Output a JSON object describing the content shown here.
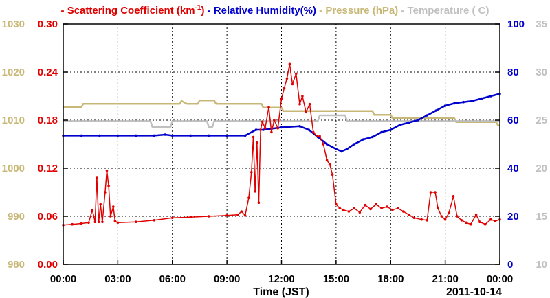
{
  "chart_data": {
    "type": "line",
    "legend_position": "top",
    "grid": true,
    "x_label": "Time (JST)",
    "date_label": "2011-10-14",
    "x_ticks": [
      "00:00",
      "03:00",
      "06:00",
      "09:00",
      "12:00",
      "15:00",
      "18:00",
      "21:00",
      "00:00"
    ],
    "x_range_hours": [
      0,
      24
    ],
    "axes": {
      "scattering": {
        "ticks": [
          "0.00",
          "0.06",
          "0.12",
          "0.18",
          "0.24",
          "0.30"
        ],
        "range": [
          0,
          0.3
        ]
      },
      "pressure": {
        "ticks": [
          "980",
          "990",
          "1000",
          "1010",
          "1020",
          "1030"
        ],
        "range": [
          980,
          1030
        ]
      },
      "humidity": {
        "ticks": [
          "0",
          "20",
          "40",
          "60",
          "80",
          "100"
        ],
        "range": [
          0,
          100
        ]
      },
      "temperature": {
        "ticks": [
          "10",
          "15",
          "20",
          "25",
          "30",
          "35"
        ],
        "range": [
          10,
          35
        ]
      }
    },
    "series": [
      {
        "name": "Scattering Coefficient (km",
        "name_sup": "-1",
        "name_suffix": ")",
        "color": "#e00000",
        "axis": "scattering",
        "markers": true,
        "points": [
          [
            0,
            0.049
          ],
          [
            0.5,
            0.05
          ],
          [
            1,
            0.051
          ],
          [
            1.4,
            0.052
          ],
          [
            1.6,
            0.068
          ],
          [
            1.75,
            0.053
          ],
          [
            1.85,
            0.108
          ],
          [
            1.95,
            0.053
          ],
          [
            2.05,
            0.075
          ],
          [
            2.15,
            0.053
          ],
          [
            2.3,
            0.09
          ],
          [
            2.4,
            0.117
          ],
          [
            2.5,
            0.098
          ],
          [
            2.6,
            0.06
          ],
          [
            2.75,
            0.072
          ],
          [
            2.85,
            0.054
          ],
          [
            3,
            0.052
          ],
          [
            4,
            0.053
          ],
          [
            5,
            0.055
          ],
          [
            6,
            0.058
          ],
          [
            7,
            0.059
          ],
          [
            8,
            0.06
          ],
          [
            9,
            0.061
          ],
          [
            9.6,
            0.062
          ],
          [
            9.8,
            0.066
          ],
          [
            10,
            0.061
          ],
          [
            10.2,
            0.083
          ],
          [
            10.35,
            0.115
          ],
          [
            10.45,
            0.159
          ],
          [
            10.55,
            0.091
          ],
          [
            10.65,
            0.152
          ],
          [
            10.75,
            0.077
          ],
          [
            10.85,
            0.168
          ],
          [
            10.95,
            0.178
          ],
          [
            11.1,
            0.17
          ],
          [
            11.3,
            0.196
          ],
          [
            11.45,
            0.165
          ],
          [
            11.6,
            0.18
          ],
          [
            11.8,
            0.17
          ],
          [
            12,
            0.207
          ],
          [
            12.15,
            0.22
          ],
          [
            12.3,
            0.232
          ],
          [
            12.45,
            0.25
          ],
          [
            12.6,
            0.225
          ],
          [
            12.8,
            0.238
          ],
          [
            13,
            0.2
          ],
          [
            13.15,
            0.21
          ],
          [
            13.35,
            0.19
          ],
          [
            13.55,
            0.2
          ],
          [
            13.75,
            0.165
          ],
          [
            13.95,
            0.16
          ],
          [
            14.1,
            0.16
          ],
          [
            14.3,
            0.15
          ],
          [
            14.5,
            0.13
          ],
          [
            14.65,
            0.125
          ],
          [
            14.8,
            0.112
          ],
          [
            15,
            0.075
          ],
          [
            15.2,
            0.07
          ],
          [
            15.4,
            0.068
          ],
          [
            15.7,
            0.066
          ],
          [
            16,
            0.07
          ],
          [
            16.3,
            0.065
          ],
          [
            16.6,
            0.074
          ],
          [
            16.9,
            0.069
          ],
          [
            17.2,
            0.075
          ],
          [
            17.5,
            0.07
          ],
          [
            17.8,
            0.072
          ],
          [
            18.1,
            0.068
          ],
          [
            18.4,
            0.07
          ],
          [
            18.7,
            0.066
          ],
          [
            19,
            0.062
          ],
          [
            19.3,
            0.058
          ],
          [
            19.7,
            0.056
          ],
          [
            20,
            0.055
          ],
          [
            20.2,
            0.09
          ],
          [
            20.45,
            0.09
          ],
          [
            20.6,
            0.07
          ],
          [
            20.8,
            0.06
          ],
          [
            21,
            0.056
          ],
          [
            21.2,
            0.064
          ],
          [
            21.45,
            0.085
          ],
          [
            21.65,
            0.06
          ],
          [
            21.9,
            0.055
          ],
          [
            22.15,
            0.052
          ],
          [
            22.4,
            0.05
          ],
          [
            22.7,
            0.062
          ],
          [
            22.9,
            0.053
          ],
          [
            23.2,
            0.05
          ],
          [
            23.5,
            0.056
          ],
          [
            23.75,
            0.054
          ],
          [
            24,
            0.056
          ]
        ]
      },
      {
        "name": "Relative Humidity(%)",
        "color": "#0000cc",
        "axis": "humidity",
        "markers": true,
        "points": [
          [
            0,
            53.6
          ],
          [
            1,
            53.6
          ],
          [
            2,
            53.6
          ],
          [
            3,
            53.6
          ],
          [
            4,
            53.6
          ],
          [
            5,
            53.6
          ],
          [
            5.6,
            54
          ],
          [
            6,
            53.6
          ],
          [
            7,
            53.6
          ],
          [
            8,
            53.6
          ],
          [
            9,
            53.6
          ],
          [
            10,
            53.6
          ],
          [
            10.6,
            56
          ],
          [
            11,
            56
          ],
          [
            12,
            57
          ],
          [
            13,
            57.5
          ],
          [
            13.5,
            56
          ],
          [
            14,
            53
          ],
          [
            14.5,
            50
          ],
          [
            15,
            48
          ],
          [
            15.3,
            47
          ],
          [
            15.6,
            48
          ],
          [
            16,
            50
          ],
          [
            16.5,
            52
          ],
          [
            17,
            53
          ],
          [
            17.5,
            55
          ],
          [
            18,
            56
          ],
          [
            18.5,
            58
          ],
          [
            19,
            59
          ],
          [
            19.5,
            60
          ],
          [
            20,
            62
          ],
          [
            20.5,
            64
          ],
          [
            21,
            66
          ],
          [
            21.5,
            67
          ],
          [
            22,
            67.5
          ],
          [
            22.5,
            68
          ],
          [
            23,
            69
          ],
          [
            23.5,
            70
          ],
          [
            24,
            71
          ]
        ]
      },
      {
        "name": "Pressure (hPa)",
        "color": "#c8b878",
        "axis": "pressure",
        "markers": false,
        "points": [
          [
            0,
            1012.7
          ],
          [
            1,
            1012.7
          ],
          [
            1.1,
            1013.4
          ],
          [
            6.4,
            1013.4
          ],
          [
            6.5,
            1014
          ],
          [
            6.8,
            1013.4
          ],
          [
            7.4,
            1013.4
          ],
          [
            7.5,
            1014.1
          ],
          [
            8.3,
            1014.1
          ],
          [
            8.4,
            1013.4
          ],
          [
            10.9,
            1013.4
          ],
          [
            11,
            1012.6
          ],
          [
            12,
            1012.6
          ],
          [
            12.1,
            1011.9
          ],
          [
            17,
            1011.9
          ],
          [
            17.1,
            1011.1
          ],
          [
            18,
            1011.1
          ],
          [
            18.1,
            1010.4
          ],
          [
            21.5,
            1010.4
          ],
          [
            21.6,
            1009.6
          ],
          [
            23.8,
            1009.6
          ],
          [
            23.9,
            1008.9
          ],
          [
            24,
            1008.9
          ]
        ]
      },
      {
        "name": "Temperature (",
        "name_suffix": "C)",
        "color": "#c0c0c0",
        "axis": "temperature",
        "markers": false,
        "points": [
          [
            0,
            24.9
          ],
          [
            4.8,
            24.9
          ],
          [
            4.9,
            24.3
          ],
          [
            5.9,
            24.3
          ],
          [
            6,
            24.9
          ],
          [
            7.9,
            24.9
          ],
          [
            8,
            24.3
          ],
          [
            8.2,
            24.3
          ],
          [
            8.3,
            24.9
          ],
          [
            14,
            24.9
          ],
          [
            14.1,
            25.5
          ],
          [
            15.5,
            25.5
          ],
          [
            15.6,
            24.9
          ],
          [
            24,
            24.9
          ]
        ]
      }
    ]
  }
}
